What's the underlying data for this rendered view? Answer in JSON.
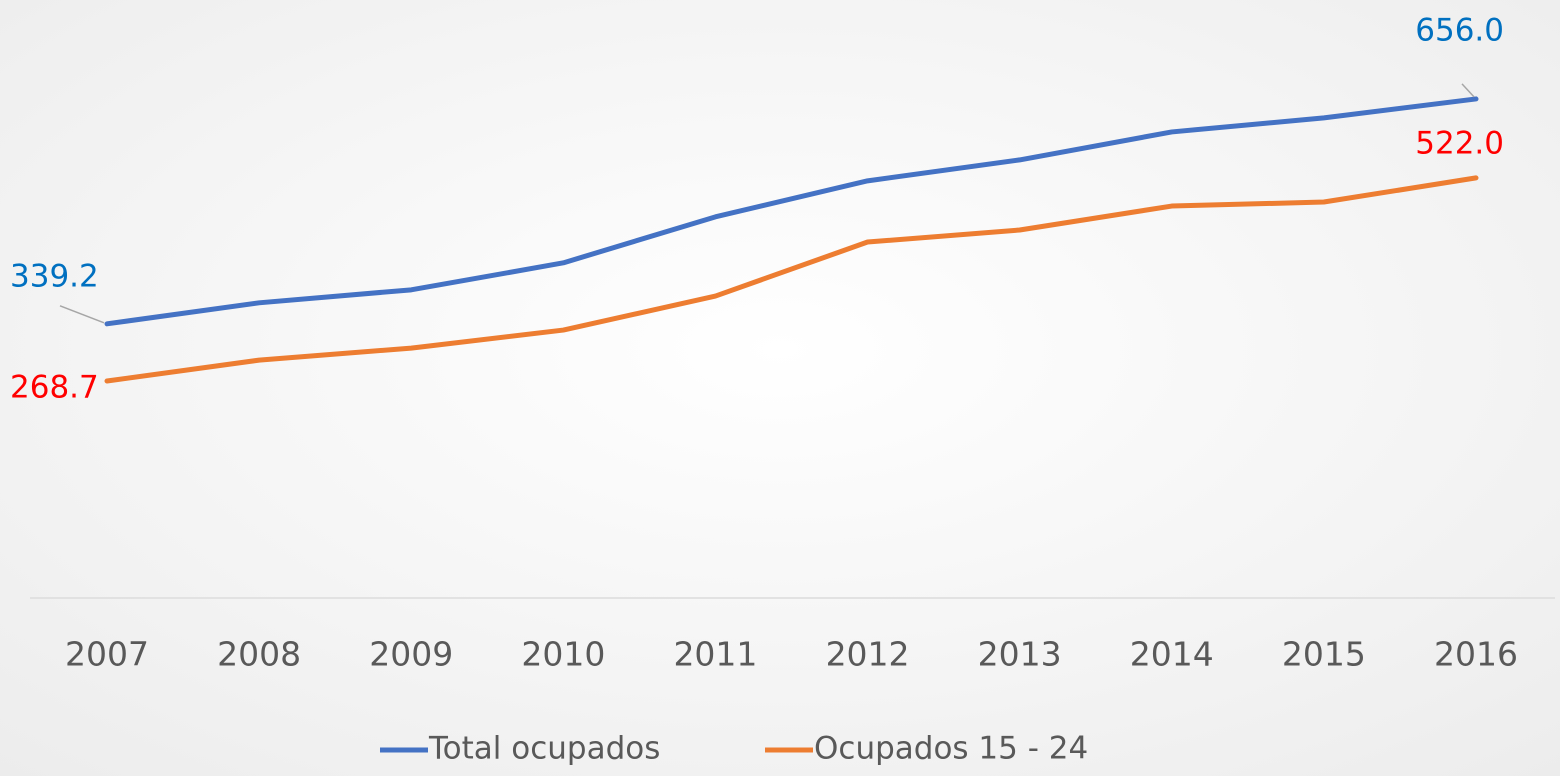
{
  "chart_data": {
    "type": "line",
    "categories": [
      "2007",
      "2008",
      "2009",
      "2010",
      "2011",
      "2012",
      "2013",
      "2014",
      "2015",
      "2016"
    ],
    "series": [
      {
        "name": "Total ocupados",
        "color": "#4472c4",
        "label_color": "#0070c0",
        "values": [
          339.2,
          368.8,
          387.1,
          425.1,
          489.9,
          540.6,
          570.1,
          609.5,
          629.3,
          656.0
        ],
        "value_labels": [
          "339.2",
          null,
          null,
          null,
          null,
          null,
          null,
          null,
          null,
          "656.0"
        ]
      },
      {
        "name": "Ocupados 15 - 24",
        "color": "#ed7d31",
        "label_color": "#ff0000",
        "axis": "y2",
        "values": [
          268.7,
          294.7,
          309.7,
          332.2,
          374.6,
          442.0,
          457.0,
          486.9,
          491.9,
          522.0
        ],
        "value_labels": [
          "268.7",
          null,
          null,
          null,
          null,
          null,
          null,
          null,
          null,
          "522.0"
        ]
      }
    ],
    "ylim": [
      -47,
      739
    ],
    "y2lim": [
      -2,
      694
    ],
    "legend": "bottom"
  }
}
